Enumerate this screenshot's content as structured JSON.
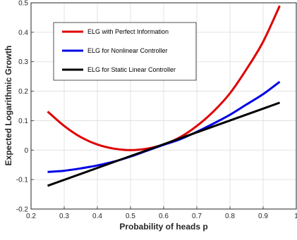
{
  "chart_data": {
    "type": "line",
    "title": "",
    "xlabel": "Probability of heads p",
    "ylabel": "Expected Logarithmic Growth",
    "xlim": [
      0.2,
      1.0
    ],
    "ylim": [
      -0.2,
      0.5
    ],
    "xticks": [
      0.2,
      0.3,
      0.4,
      0.5,
      0.6,
      0.7,
      0.8,
      0.9,
      1.0
    ],
    "xtick_labels": [
      "0.2",
      "0.3",
      "0.4",
      "0.5",
      "0.6",
      "0.7",
      "0.8",
      "0.9",
      "1"
    ],
    "yticks": [
      -0.2,
      -0.1,
      0,
      0.1,
      0.2,
      0.3,
      0.4,
      0.5
    ],
    "ytick_labels": [
      "-0.2",
      "-0.1",
      "0",
      "0.1",
      "0.2",
      "0.3",
      "0.4",
      "0.5"
    ],
    "grid": true,
    "legend_position": "top-left",
    "series": [
      {
        "name": "ELG with Perfect Information",
        "color": "#e00000",
        "x": [
          0.25,
          0.3,
          0.35,
          0.4,
          0.45,
          0.5,
          0.55,
          0.6,
          0.65,
          0.7,
          0.75,
          0.8,
          0.85,
          0.9,
          0.95
        ],
        "y": [
          0.131,
          0.082,
          0.044,
          0.019,
          0.005,
          0.0,
          0.005,
          0.019,
          0.044,
          0.082,
          0.131,
          0.193,
          0.275,
          0.368,
          0.49
        ]
      },
      {
        "name": "ELG for Nonlinear Controller",
        "color": "#0000e6",
        "x": [
          0.25,
          0.3,
          0.35,
          0.4,
          0.45,
          0.5,
          0.55,
          0.6,
          0.65,
          0.7,
          0.75,
          0.8,
          0.85,
          0.9,
          0.95
        ],
        "y": [
          -0.074,
          -0.07,
          -0.062,
          -0.052,
          -0.039,
          -0.022,
          -0.002,
          0.018,
          0.037,
          0.062,
          0.09,
          0.12,
          0.155,
          0.19,
          0.232
        ]
      },
      {
        "name": "ELG for Static Linear Controller",
        "color": "#000000",
        "x": [
          0.25,
          0.95
        ],
        "y": [
          -0.121,
          0.161
        ]
      }
    ]
  }
}
